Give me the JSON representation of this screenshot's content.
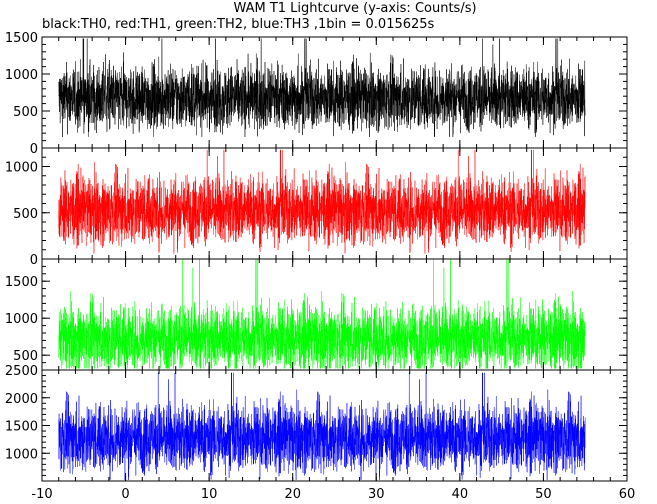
{
  "chart_data": {
    "type": "line",
    "title": "WAM T1 Lightcurve (y-axis: Counts/s)",
    "subtitle": "black:TH0, red:TH1, green:TH2, blue:TH3 ,1bin = 0.015625s",
    "xlim": [
      -10,
      60
    ],
    "x_ticks": [
      -10,
      0,
      10,
      20,
      30,
      40,
      50,
      60
    ],
    "x_tick_labels": [
      "-10",
      "0",
      "10",
      "20",
      "30",
      "40",
      "50",
      "60"
    ],
    "data_x_range": [
      -8,
      55
    ],
    "bin_seconds": 0.015625,
    "series": [
      {
        "name": "TH0",
        "color": "#000000",
        "ylim": [
          0,
          1500
        ],
        "y_ticks": [
          0,
          500,
          1000,
          1500
        ],
        "y_tick_labels": [
          "0",
          "500",
          "1000",
          "1500"
        ],
        "mean": 680,
        "spread": 210,
        "min": 150,
        "max": 1480
      },
      {
        "name": "TH1",
        "color": "#ff0000",
        "ylim": [
          0,
          1200
        ],
        "y_ticks": [
          0,
          500,
          1000
        ],
        "y_tick_labels": [
          "0",
          "500",
          "1000"
        ],
        "mean": 530,
        "spread": 180,
        "min": 60,
        "max": 1180
      },
      {
        "name": "TH2",
        "color": "#00ff00",
        "ylim": [
          300,
          1800
        ],
        "y_ticks": [
          500,
          1000,
          1500
        ],
        "y_tick_labels": [
          "500",
          "1000",
          "1500"
        ],
        "mean": 730,
        "spread": 220,
        "min": 320,
        "max": 1790
      },
      {
        "name": "TH3",
        "color": "#0000ff",
        "ylim": [
          500,
          2500
        ],
        "y_ticks": [
          1000,
          1500,
          2000,
          2500
        ],
        "y_tick_labels": [
          "1000",
          "1500",
          "2000",
          "2500"
        ],
        "mean": 1280,
        "spread": 300,
        "min": 520,
        "max": 2450
      }
    ],
    "grid": false,
    "legend": "none"
  }
}
